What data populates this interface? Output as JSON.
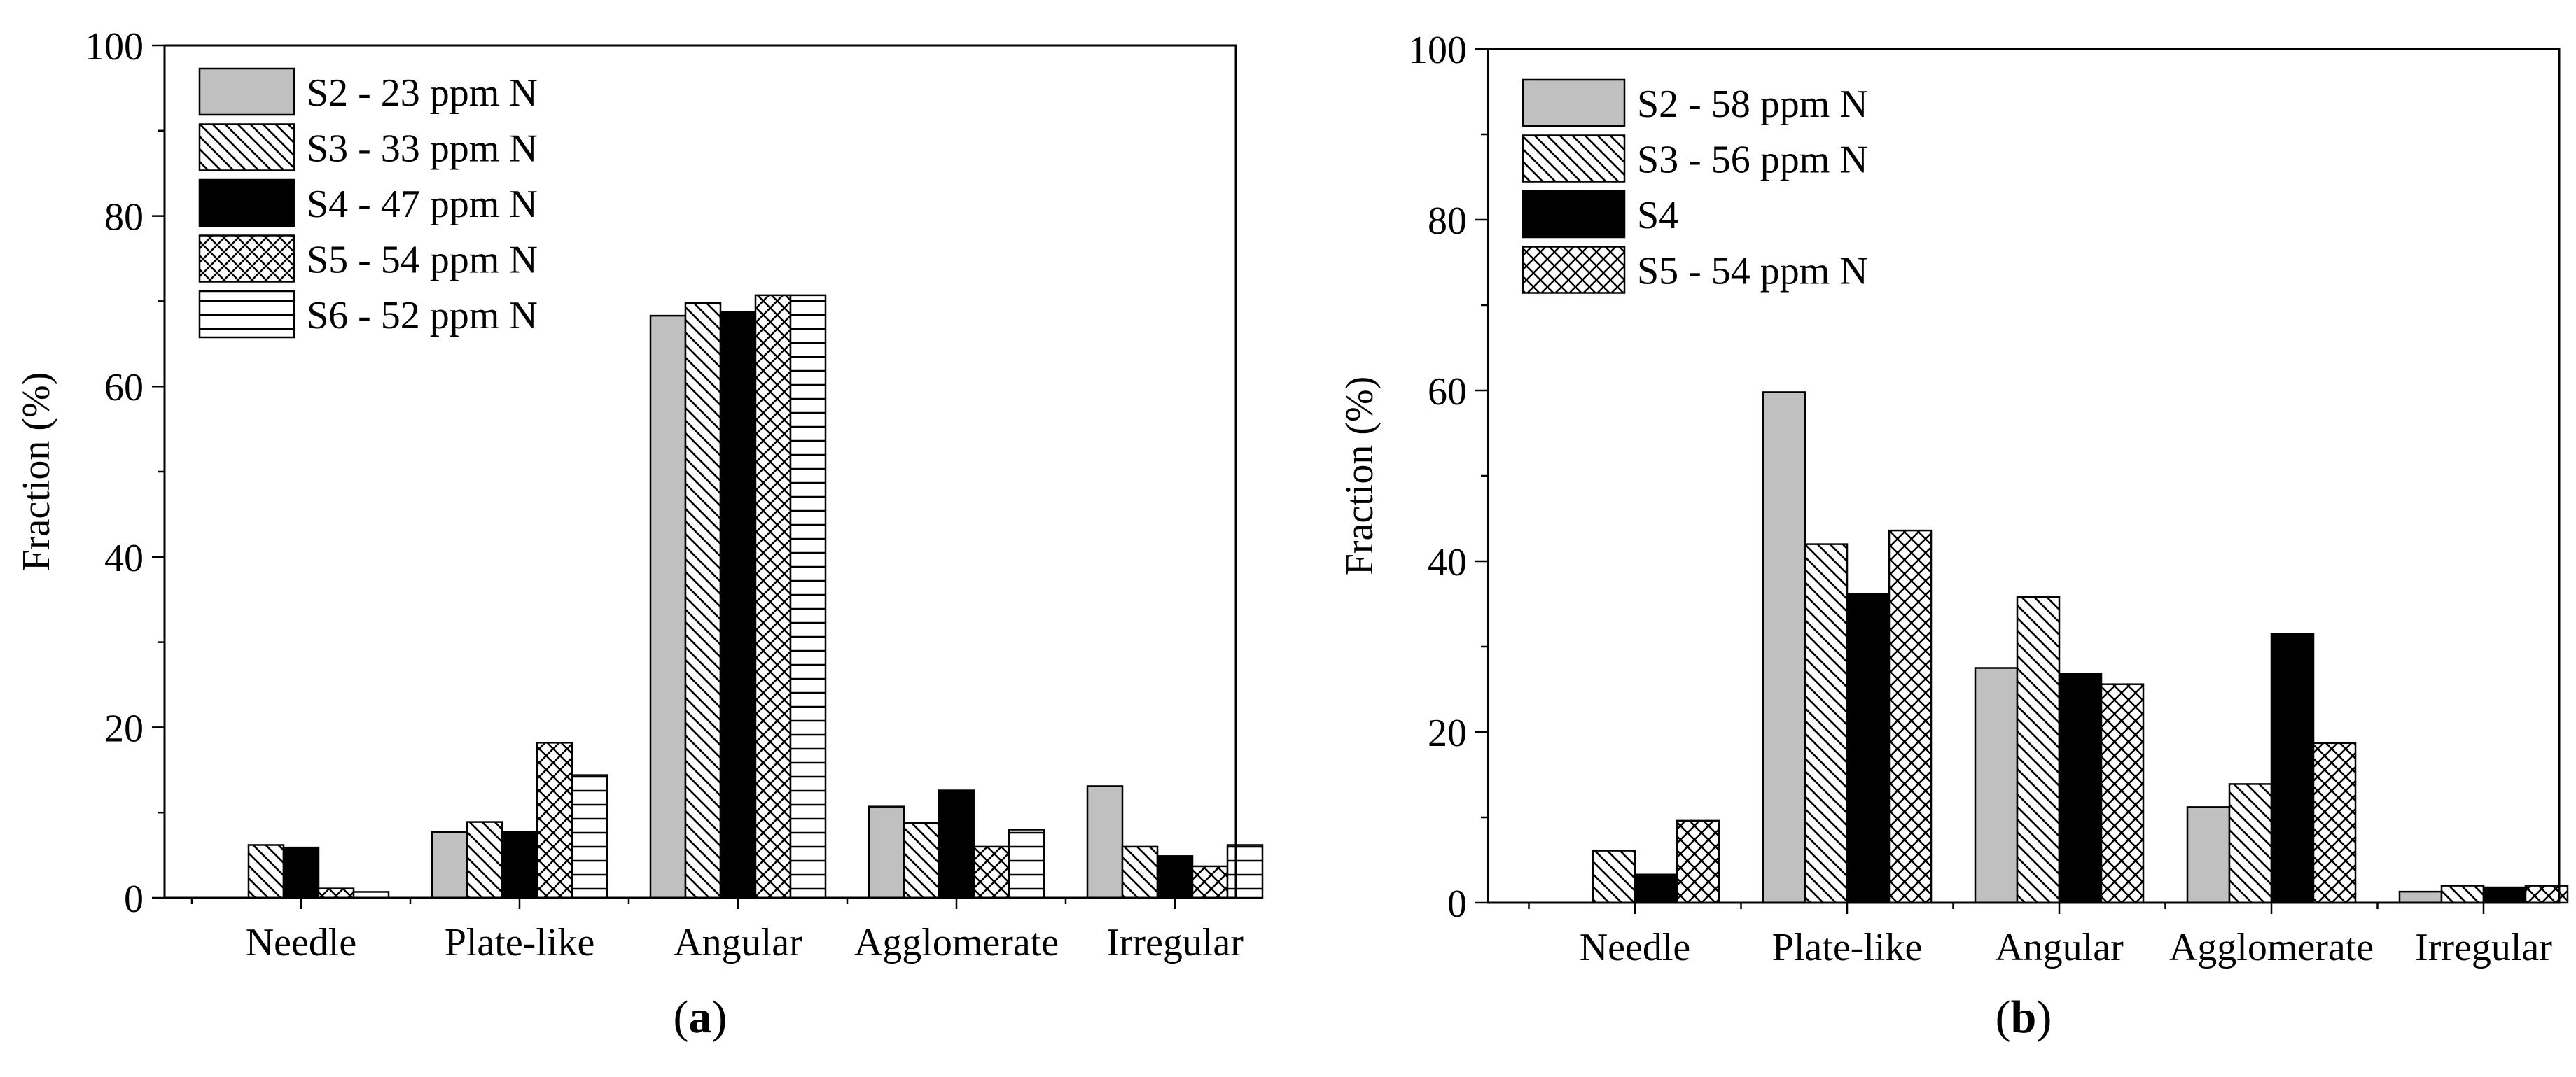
{
  "chart_data": [
    {
      "type": "bar",
      "panel_label": "a",
      "categories": [
        "Needle",
        "Plate-like",
        "Angular",
        "Agglomerate",
        "Irregular"
      ],
      "ylabel": "Fraction (%)",
      "xlabel": "",
      "ylim": [
        0,
        100
      ],
      "yticks": [
        0,
        20,
        40,
        60,
        80,
        100
      ],
      "grid": false,
      "legend_position": "top-left",
      "series": [
        {
          "name": "S2 - 23 ppm N",
          "pattern": "gray",
          "values": [
            0,
            7.7,
            68.3,
            10.7,
            13.1
          ]
        },
        {
          "name": "S3 - 33 ppm N",
          "pattern": "diag-down",
          "values": [
            6.2,
            8.9,
            69.8,
            8.8,
            6.0
          ]
        },
        {
          "name": "S4 - 47 ppm N",
          "pattern": "black",
          "values": [
            5.9,
            7.7,
            68.7,
            12.6,
            4.9
          ]
        },
        {
          "name": "S5 - 54 ppm N",
          "pattern": "crosshatch",
          "values": [
            1.1,
            18.2,
            70.7,
            6.0,
            3.7
          ]
        },
        {
          "name": "S6 - 52 ppm N",
          "pattern": "horizontal",
          "values": [
            0.7,
            14.4,
            70.7,
            8.0,
            6.2
          ]
        }
      ]
    },
    {
      "type": "bar",
      "panel_label": "b",
      "categories": [
        "Needle",
        "Plate-like",
        "Angular",
        "Agglomerate",
        "Irregular"
      ],
      "ylabel": "Fraction (%)",
      "xlabel": "",
      "ylim": [
        0,
        100
      ],
      "yticks": [
        0,
        20,
        40,
        60,
        80,
        100
      ],
      "grid": false,
      "legend_position": "top-left",
      "series": [
        {
          "name": "S2 - 58 ppm N",
          "pattern": "gray",
          "values": [
            0,
            59.8,
            27.5,
            11.2,
            1.3
          ]
        },
        {
          "name": "S3 - 56 ppm N",
          "pattern": "diag-down",
          "values": [
            6.1,
            42.0,
            35.8,
            13.9,
            2.0
          ]
        },
        {
          "name": "S4",
          "pattern": "black",
          "values": [
            3.3,
            36.2,
            26.8,
            31.5,
            1.8
          ]
        },
        {
          "name": "S5 - 54 ppm N",
          "pattern": "crosshatch",
          "values": [
            9.6,
            43.6,
            25.6,
            18.7,
            2.0
          ]
        }
      ]
    }
  ]
}
